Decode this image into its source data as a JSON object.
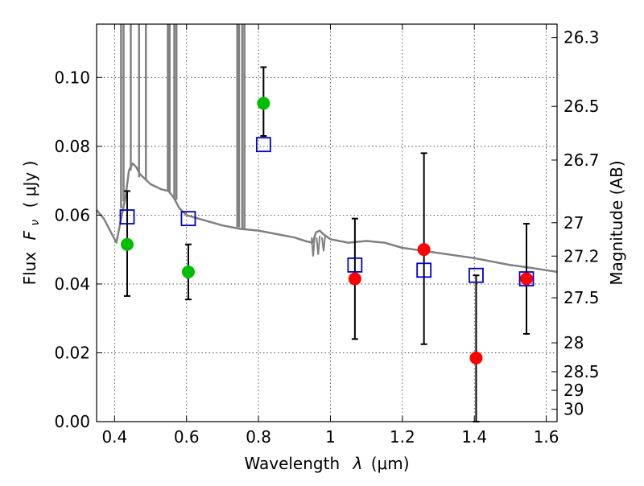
{
  "chart_data": {
    "type": "scatter",
    "title": "",
    "xlabel_text": "Wavelength",
    "xlabel_symbol": "λ",
    "xlabel_unit": "(μm)",
    "ylabel_text": "Flux",
    "ylabel_symbol": "F",
    "ylabel_subscript": "ν",
    "ylabel_unit": "( μJy )",
    "y2label": "Magnitude (AB)",
    "xlim": [
      0.35,
      1.63
    ],
    "ylim": [
      0.0,
      0.1155
    ],
    "grid": true,
    "x_ticks": [
      0.4,
      0.6,
      0.8,
      1.0,
      1.2,
      1.4,
      1.6
    ],
    "x_tick_labels": [
      "0.4",
      "0.6",
      "0.8",
      "1",
      "1.2",
      "1.4",
      "1.6"
    ],
    "y_ticks": [
      0.0,
      0.02,
      0.04,
      0.06,
      0.08,
      0.1
    ],
    "y_tick_labels": [
      "0.00",
      "0.02",
      "0.04",
      "0.06",
      "0.08",
      "0.10"
    ],
    "y2_ticks": [
      {
        "flux": 0.1116,
        "label": "26.3"
      },
      {
        "flux": 0.0916,
        "label": "26.5"
      },
      {
        "flux": 0.076,
        "label": "26.7"
      },
      {
        "flux": 0.0578,
        "label": "27"
      },
      {
        "flux": 0.0481,
        "label": "27.2"
      },
      {
        "flux": 0.036,
        "label": "27.5"
      },
      {
        "flux": 0.0229,
        "label": "28"
      },
      {
        "flux": 0.0145,
        "label": "28.5"
      },
      {
        "flux": 0.0091,
        "label": "29"
      },
      {
        "flux": 0.0036,
        "label": "30"
      }
    ],
    "colors": {
      "green": "#00bf00",
      "red": "#ff0000",
      "blue": "#0000cc",
      "gray": "#808080",
      "errorbar": "#000000"
    },
    "series": [
      {
        "marker": "circle",
        "color": "green",
        "points": [
          {
            "x": 0.435,
            "y": 0.0515,
            "err": [
              0.0365,
              0.067
            ]
          },
          {
            "x": 0.605,
            "y": 0.0435,
            "err": [
              0.0355,
              0.0515
            ]
          },
          {
            "x": 0.814,
            "y": 0.0925,
            "err": [
              0.083,
              0.103
            ]
          }
        ]
      },
      {
        "marker": "circle",
        "color": "red",
        "points": [
          {
            "x": 1.068,
            "y": 0.0415,
            "err": [
              0.024,
              0.059
            ]
          },
          {
            "x": 1.26,
            "y": 0.05,
            "err": [
              0.0225,
              0.078
            ]
          },
          {
            "x": 1.405,
            "y": 0.0185,
            "err": [
              0.0,
              0.0425
            ]
          },
          {
            "x": 1.545,
            "y": 0.0415,
            "err": [
              0.0255,
              0.0575
            ]
          }
        ]
      },
      {
        "marker": "square",
        "color": "blue",
        "points": [
          {
            "x": 0.435,
            "y": 0.0595
          },
          {
            "x": 0.605,
            "y": 0.059
          },
          {
            "x": 0.814,
            "y": 0.0805
          },
          {
            "x": 1.068,
            "y": 0.0455
          },
          {
            "x": 1.26,
            "y": 0.044
          },
          {
            "x": 1.405,
            "y": 0.0425
          },
          {
            "x": 1.545,
            "y": 0.0415
          }
        ]
      }
    ],
    "sed_curve": {
      "color": "gray",
      "points": [
        [
          0.35,
          0.0615
        ],
        [
          0.37,
          0.059
        ],
        [
          0.39,
          0.055
        ],
        [
          0.405,
          0.052
        ],
        [
          0.42,
          0.06
        ],
        [
          0.43,
          0.065
        ],
        [
          0.44,
          0.073
        ],
        [
          0.45,
          0.075
        ],
        [
          0.46,
          0.074
        ],
        [
          0.47,
          0.072
        ],
        [
          0.5,
          0.069
        ],
        [
          0.53,
          0.0675
        ],
        [
          0.55,
          0.067
        ],
        [
          0.565,
          0.065
        ],
        [
          0.58,
          0.062
        ],
        [
          0.6,
          0.06
        ],
        [
          0.65,
          0.0585
        ],
        [
          0.7,
          0.057
        ],
        [
          0.75,
          0.056
        ],
        [
          0.8,
          0.0555
        ],
        [
          0.85,
          0.0545
        ],
        [
          0.9,
          0.0535
        ],
        [
          0.93,
          0.0525
        ],
        [
          0.95,
          0.052
        ],
        [
          0.96,
          0.055
        ],
        [
          0.97,
          0.0555
        ],
        [
          0.98,
          0.0545
        ],
        [
          1.0,
          0.053
        ],
        [
          1.05,
          0.052
        ],
        [
          1.1,
          0.0525
        ],
        [
          1.15,
          0.052
        ],
        [
          1.2,
          0.0505
        ],
        [
          1.3,
          0.049
        ],
        [
          1.4,
          0.0475
        ],
        [
          1.5,
          0.0455
        ],
        [
          1.55,
          0.0448
        ],
        [
          1.6,
          0.044
        ],
        [
          1.63,
          0.0435
        ]
      ],
      "spikes": [
        {
          "x": 0.418,
          "base": 0.062
        },
        {
          "x": 0.425,
          "base": 0.064
        },
        {
          "x": 0.445,
          "base": 0.073
        },
        {
          "x": 0.468,
          "base": 0.071
        },
        {
          "x": 0.487,
          "base": 0.07
        },
        {
          "x": 0.548,
          "base": 0.067
        },
        {
          "x": 0.553,
          "base": 0.0668
        },
        {
          "x": 0.566,
          "base": 0.065
        },
        {
          "x": 0.572,
          "base": 0.0645
        },
        {
          "x": 0.741,
          "base": 0.0565
        },
        {
          "x": 0.746,
          "base": 0.0565
        },
        {
          "x": 0.755,
          "base": 0.0562
        },
        {
          "x": 0.761,
          "base": 0.056
        }
      ],
      "dips": [
        {
          "x": 0.952,
          "depth": 0.048
        },
        {
          "x": 0.966,
          "depth": 0.0485
        },
        {
          "x": 0.981,
          "depth": 0.0495
        }
      ]
    }
  }
}
